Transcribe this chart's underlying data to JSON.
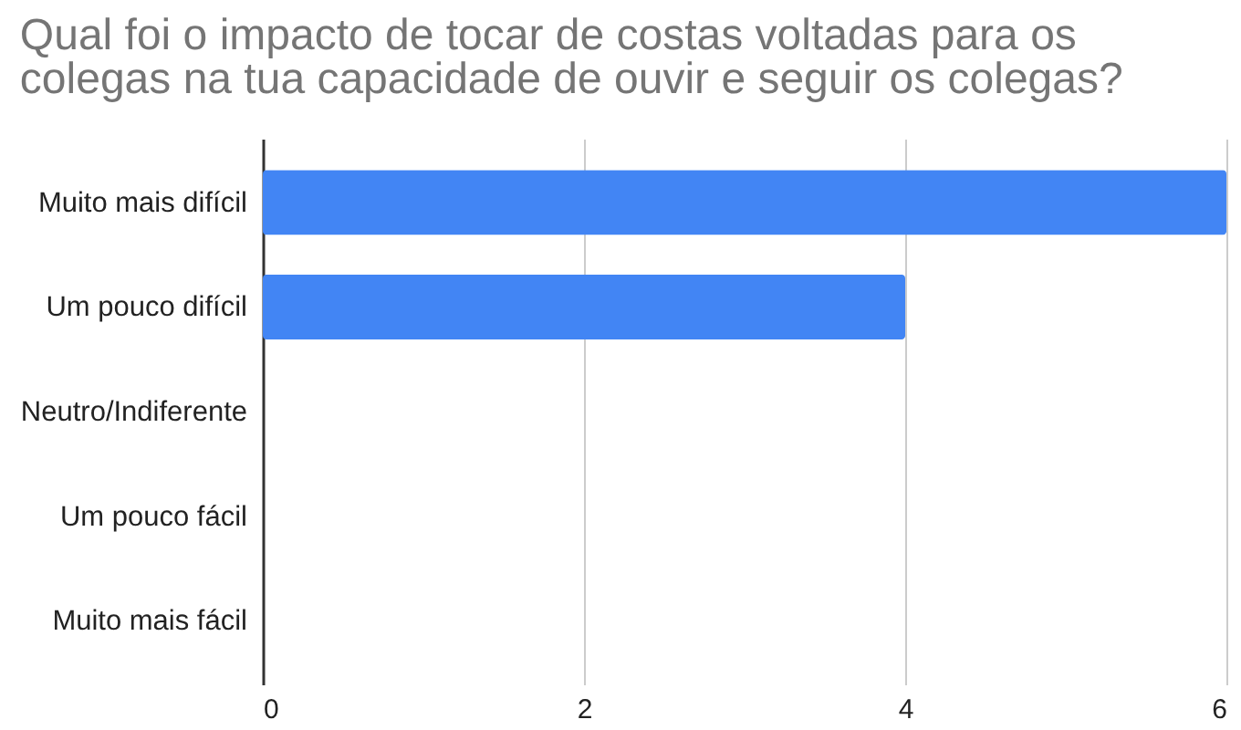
{
  "chart_data": {
    "type": "bar",
    "orientation": "horizontal",
    "title": "Qual foi o impacto de tocar de costas voltadas para os colegas na tua capacidade de ouvir e seguir os colegas?",
    "categories": [
      "Muito mais difícil",
      "Um pouco difícil",
      "Neutro/Indiferente",
      "Um pouco fácil",
      "Muito mais fácil"
    ],
    "values": [
      6,
      4,
      0,
      0,
      0
    ],
    "color": "#4285f4",
    "xlim": [
      0,
      6
    ],
    "xticks": [
      0,
      2,
      4,
      6
    ],
    "grid": "x"
  }
}
